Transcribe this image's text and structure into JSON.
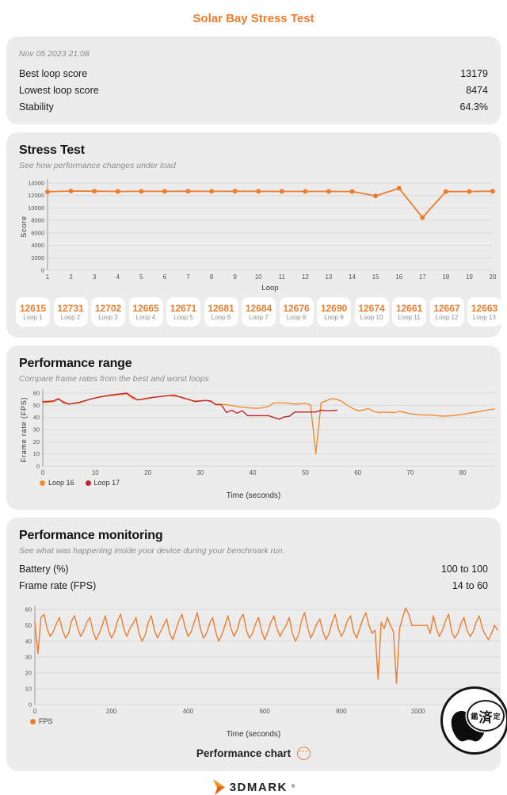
{
  "page_title": "Solar Bay Stress Test",
  "summary": {
    "date": "Nov 05 2023 21:08",
    "rows": [
      {
        "label": "Best loop score",
        "value": "13179"
      },
      {
        "label": "Lowest loop score",
        "value": "8474"
      },
      {
        "label": "Stability",
        "value": "64.3%"
      }
    ]
  },
  "stress_test": {
    "title": "Stress Test",
    "subtitle": "See how performance changes under load",
    "loops": [
      {
        "value": "12615",
        "label": "Loop 1"
      },
      {
        "value": "12731",
        "label": "Loop 2"
      },
      {
        "value": "12702",
        "label": "Loop 3"
      },
      {
        "value": "12665",
        "label": "Loop 4"
      },
      {
        "value": "12671",
        "label": "Loop 5"
      },
      {
        "value": "12681",
        "label": "Loop 6"
      },
      {
        "value": "12684",
        "label": "Loop 7"
      },
      {
        "value": "12676",
        "label": "Loop 8"
      },
      {
        "value": "12690",
        "label": "Loop 9"
      },
      {
        "value": "12674",
        "label": "Loop 10"
      },
      {
        "value": "12661",
        "label": "Loop 11"
      },
      {
        "value": "12667",
        "label": "Loop 12"
      },
      {
        "value": "12663",
        "label": "Loop 13"
      }
    ]
  },
  "performance_range": {
    "title": "Performance range",
    "subtitle": "Compare frame rates from the best and worst loops",
    "xlabel": "Time (seconds)"
  },
  "performance_monitoring": {
    "title": "Performance monitoring",
    "subtitle": "See what was happening inside your device during your benchmark run.",
    "rows": [
      {
        "label": "Battery (%)",
        "value": "100 to 100"
      },
      {
        "label": "Frame rate (FPS)",
        "value": "14 to 60"
      }
    ],
    "xlabel": "Time (seconds)",
    "footer_label": "Performance chart",
    "more_icon": "···"
  },
  "footer": {
    "brand": "3DMARK",
    "registered": "®"
  },
  "watermark": {
    "stamp_left": "鑑",
    "stamp_mid": "済",
    "stamp_right": "定"
  },
  "colors": {
    "accent": "#ed7d2e",
    "loop16": "#f08c33",
    "loop17": "#c1272d",
    "card_bg": "#ececec"
  },
  "chart_data": [
    {
      "id": "stress-chart",
      "type": "line",
      "xlabel": "Loop",
      "ylabel": "Score",
      "xlim": [
        1,
        20
      ],
      "ylim": [
        0,
        14000
      ],
      "yticks": [
        0,
        2000,
        4000,
        6000,
        8000,
        10000,
        12000,
        14000
      ],
      "xticks": [
        1,
        2,
        3,
        4,
        5,
        6,
        7,
        8,
        9,
        10,
        11,
        12,
        13,
        14,
        15,
        16,
        17,
        18,
        19,
        20
      ],
      "grid": true,
      "series": [
        {
          "name": "Score",
          "color": "#ed7d2e",
          "markers": true,
          "x_start": 1,
          "x_step": 1,
          "values": [
            12615,
            12731,
            12702,
            12665,
            12671,
            12681,
            12684,
            12676,
            12690,
            12674,
            12661,
            12667,
            12663,
            12655,
            11920,
            13179,
            8474,
            12640,
            12650,
            12700
          ]
        }
      ]
    },
    {
      "id": "range-chart",
      "type": "line",
      "xlabel": "Time (seconds)",
      "ylabel": "Frame rate (FPS)",
      "xlim": [
        0,
        86
      ],
      "ylim": [
        0,
        60
      ],
      "yticks": [
        0,
        10,
        20,
        30,
        40,
        50,
        60
      ],
      "xticks": [
        0,
        10,
        20,
        30,
        40,
        50,
        60,
        70,
        80
      ],
      "grid": true,
      "legend_position": "bottom-left",
      "series": [
        {
          "name": "Loop 16",
          "color": "#f08c33",
          "points": [
            [
              0,
              52
            ],
            [
              2,
              53
            ],
            [
              3,
              55
            ],
            [
              5,
              51
            ],
            [
              7,
              52
            ],
            [
              9,
              55
            ],
            [
              10,
              56
            ],
            [
              12,
              57.5
            ],
            [
              14,
              58.5
            ],
            [
              16,
              59.5
            ],
            [
              17,
              56
            ],
            [
              18,
              54.5
            ],
            [
              20,
              56
            ],
            [
              22,
              57
            ],
            [
              24,
              58
            ],
            [
              26,
              57
            ],
            [
              27,
              55.5
            ],
            [
              29,
              53.5
            ],
            [
              31,
              54
            ],
            [
              32,
              53
            ],
            [
              33,
              51
            ],
            [
              35,
              50.5
            ],
            [
              37,
              49
            ],
            [
              39,
              48
            ],
            [
              41,
              47.5
            ],
            [
              43,
              49
            ],
            [
              44,
              52
            ],
            [
              46,
              52
            ],
            [
              48,
              51
            ],
            [
              50,
              51.5
            ],
            [
              51,
              50.5
            ],
            [
              52,
              10
            ],
            [
              53,
              52
            ],
            [
              55,
              55.5
            ],
            [
              56,
              55
            ],
            [
              57,
              53
            ],
            [
              58,
              50
            ],
            [
              59,
              47.5
            ],
            [
              60,
              45.5
            ],
            [
              61,
              46
            ],
            [
              62,
              47.5
            ],
            [
              63,
              45
            ],
            [
              64,
              44
            ],
            [
              65,
              44.5
            ],
            [
              67,
              44
            ],
            [
              68,
              45
            ],
            [
              70,
              43
            ],
            [
              72,
              42
            ],
            [
              74,
              42
            ],
            [
              76,
              41
            ],
            [
              78,
              41.5
            ],
            [
              80,
              42.5
            ],
            [
              82,
              44
            ],
            [
              84,
              45.5
            ],
            [
              86,
              47
            ]
          ]
        },
        {
          "name": "Loop 17",
          "color": "#c1272d",
          "points": [
            [
              0,
              53
            ],
            [
              2,
              53.5
            ],
            [
              3,
              55.5
            ],
            [
              4,
              52
            ],
            [
              5,
              51
            ],
            [
              7,
              52.5
            ],
            [
              9,
              55
            ],
            [
              11,
              57
            ],
            [
              13,
              58.5
            ],
            [
              15,
              59.5
            ],
            [
              16,
              60
            ],
            [
              17,
              57
            ],
            [
              18,
              54.5
            ],
            [
              19,
              55
            ],
            [
              21,
              56.5
            ],
            [
              23,
              57.5
            ],
            [
              25,
              58.5
            ],
            [
              26,
              57
            ],
            [
              28,
              54.5
            ],
            [
              29,
              53
            ],
            [
              31,
              54
            ],
            [
              32,
              53.5
            ],
            [
              33,
              50.5
            ],
            [
              34,
              50.5
            ],
            [
              35,
              44
            ],
            [
              36,
              46
            ],
            [
              37,
              43.5
            ],
            [
              38,
              45.5
            ],
            [
              39,
              41.5
            ],
            [
              43,
              41.5
            ],
            [
              44,
              40
            ],
            [
              45,
              38.5
            ],
            [
              46,
              40.5
            ],
            [
              47,
              41
            ],
            [
              48,
              44.5
            ],
            [
              52,
              44.5
            ],
            [
              53,
              46
            ],
            [
              54,
              45.5
            ],
            [
              55,
              45.5
            ],
            [
              56,
              46
            ]
          ]
        }
      ]
    },
    {
      "id": "monitoring-chart",
      "type": "line",
      "xlabel": "Time (seconds)",
      "ylabel": "",
      "xlim": [
        0,
        1220
      ],
      "ylim": [
        0,
        60
      ],
      "yticks": [
        0,
        10,
        20,
        30,
        40,
        50,
        60
      ],
      "xticks": [
        0,
        200,
        400,
        600,
        800,
        1000
      ],
      "grid": true,
      "legend_position": "bottom-left",
      "series": [
        {
          "name": "FPS",
          "color": "#ed7d2e",
          "x_start": 0,
          "x_step": 8,
          "values": [
            52,
            32,
            55,
            57,
            48,
            43,
            46,
            51,
            55,
            47,
            42,
            45,
            53,
            56,
            48,
            43,
            47,
            52,
            55,
            46,
            41,
            45,
            50,
            56,
            47,
            42,
            46,
            53,
            57,
            48,
            43,
            48,
            51,
            55,
            45,
            40,
            44,
            52,
            56,
            47,
            42,
            46,
            50,
            54,
            45,
            41,
            47,
            53,
            57,
            49,
            43,
            46,
            52,
            58,
            48,
            42,
            45,
            51,
            55,
            46,
            40,
            44,
            50,
            56,
            48,
            43,
            47,
            54,
            57,
            47,
            42,
            45,
            51,
            55,
            46,
            41,
            46,
            52,
            56,
            48,
            43,
            47,
            50,
            55,
            45,
            40,
            44,
            53,
            58,
            49,
            42,
            46,
            51,
            54,
            46,
            41,
            45,
            52,
            57,
            48,
            43,
            47,
            53,
            56,
            46,
            42,
            48,
            54,
            58,
            50,
            45,
            47,
            16,
            52,
            48,
            55,
            50,
            46,
            13.5,
            48,
            55,
            61,
            57,
            50,
            50,
            50,
            50,
            50,
            50,
            45,
            56,
            48,
            43,
            47,
            53,
            57,
            46,
            42,
            45,
            51,
            55,
            47,
            43,
            46,
            52,
            56,
            48,
            44,
            41,
            45,
            50,
            47
          ]
        }
      ]
    }
  ]
}
